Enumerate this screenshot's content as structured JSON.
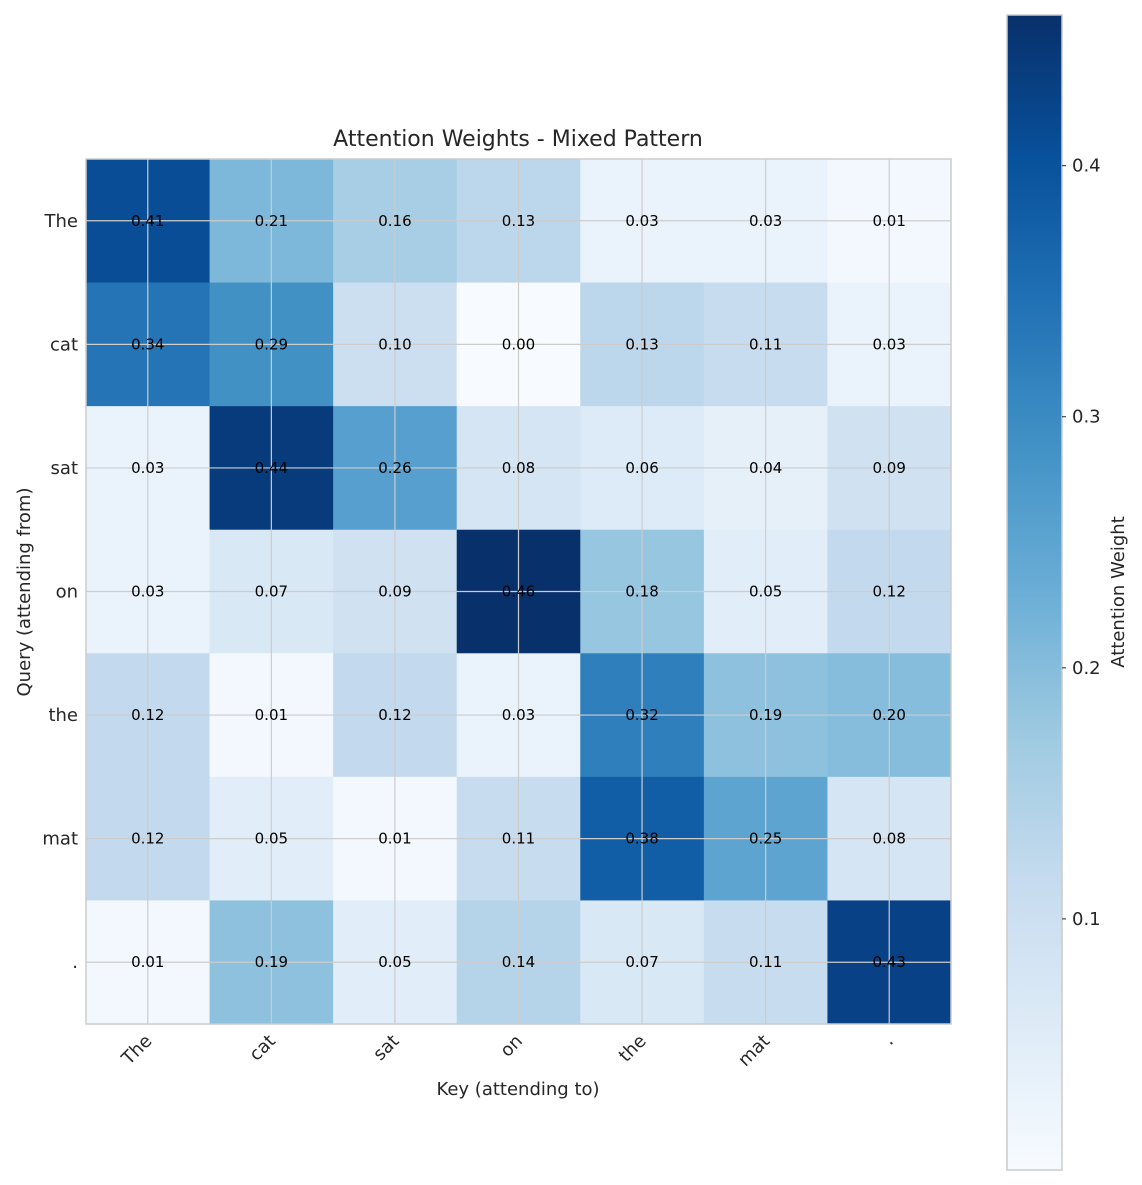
{
  "chart_data": {
    "type": "heatmap",
    "title": "Attention Weights - Mixed Pattern",
    "xlabel": "Key (attending to)",
    "ylabel": "Query (attending from)",
    "x_labels": [
      "The",
      "cat",
      "sat",
      "on",
      "the",
      "mat",
      "."
    ],
    "y_labels": [
      "The",
      "cat",
      "sat",
      "on",
      "the",
      "mat",
      "."
    ],
    "values": [
      [
        0.41,
        0.21,
        0.16,
        0.13,
        0.03,
        0.03,
        0.01
      ],
      [
        0.34,
        0.29,
        0.1,
        0.0,
        0.13,
        0.11,
        0.03
      ],
      [
        0.03,
        0.44,
        0.26,
        0.08,
        0.06,
        0.04,
        0.09
      ],
      [
        0.03,
        0.07,
        0.09,
        0.46,
        0.18,
        0.05,
        0.12
      ],
      [
        0.12,
        0.01,
        0.12,
        0.03,
        0.32,
        0.19,
        0.2
      ],
      [
        0.12,
        0.05,
        0.01,
        0.11,
        0.38,
        0.25,
        0.08
      ],
      [
        0.01,
        0.19,
        0.05,
        0.14,
        0.07,
        0.11,
        0.43
      ]
    ],
    "value_labels": [
      [
        "0.41",
        "0.21",
        "0.16",
        "0.13",
        "0.03",
        "0.03",
        "0.01"
      ],
      [
        "0.34",
        "0.29",
        "0.10",
        "0.00",
        "0.13",
        "0.11",
        "0.03"
      ],
      [
        "0.03",
        "0.44",
        "0.26",
        "0.08",
        "0.06",
        "0.04",
        "0.09"
      ],
      [
        "0.03",
        "0.07",
        "0.09",
        "0.46",
        "0.18",
        "0.05",
        "0.12"
      ],
      [
        "0.12",
        "0.01",
        "0.12",
        "0.03",
        "0.32",
        "0.19",
        "0.20"
      ],
      [
        "0.12",
        "0.05",
        "0.01",
        "0.11",
        "0.38",
        "0.25",
        "0.08"
      ],
      [
        "0.01",
        "0.19",
        "0.05",
        "0.14",
        "0.07",
        "0.11",
        "0.43"
      ]
    ],
    "colormap": "Blues",
    "colorbar": {
      "label": "Attention Weight",
      "range": [
        0.0,
        0.46
      ],
      "ticks": [
        0.1,
        0.2,
        0.3,
        0.4
      ],
      "tick_labels": [
        "0.1",
        "0.2",
        "0.3",
        "0.4"
      ]
    },
    "grid": true,
    "colors": {
      "grid": "#cccccc",
      "frame": "#cccccc",
      "text": "#262626"
    }
  }
}
